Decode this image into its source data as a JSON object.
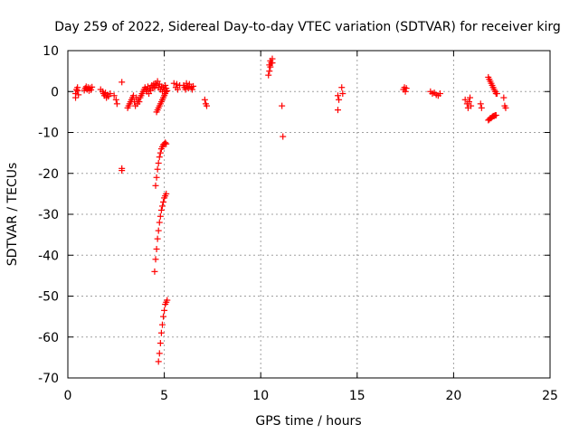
{
  "chart_data": {
    "type": "scatter",
    "title": "Day 259 of 2022, Sidereal Day-to-day VTEC variation (SDTVAR) for receiver kirg",
    "xlabel": "GPS time / hours",
    "ylabel": "SDTVAR / TECUs",
    "xlim": [
      0,
      25
    ],
    "ylim": [
      -70,
      10
    ],
    "xticks": [
      "0",
      "5",
      "10",
      "15",
      "20",
      "25"
    ],
    "yticks": [
      "10",
      "0",
      "-10",
      "-20",
      "-30",
      "-40",
      "-50",
      "-60",
      "-70"
    ],
    "grid": true,
    "marker": "+",
    "series": [
      {
        "name": "SDTVAR",
        "color": "#ff0000",
        "points": [
          [
            0.4,
            -1.5
          ],
          [
            0.4,
            -0.5
          ],
          [
            0.45,
            0.5
          ],
          [
            0.5,
            1.0
          ],
          [
            0.5,
            0.2
          ],
          [
            0.55,
            -0.8
          ],
          [
            0.85,
            0.3
          ],
          [
            0.9,
            0.8
          ],
          [
            0.95,
            1.2
          ],
          [
            1.0,
            0.5
          ],
          [
            1.05,
            1.0
          ],
          [
            1.1,
            0.2
          ],
          [
            1.15,
            0.9
          ],
          [
            1.2,
            0.4
          ],
          [
            1.25,
            1.1
          ],
          [
            1.7,
            0.5
          ],
          [
            1.8,
            0.0
          ],
          [
            1.85,
            -0.5
          ],
          [
            1.9,
            -1.0
          ],
          [
            1.95,
            -0.3
          ],
          [
            2.0,
            -1.5
          ],
          [
            2.05,
            -0.8
          ],
          [
            2.1,
            -1.2
          ],
          [
            2.2,
            -0.5
          ],
          [
            2.4,
            -1.0
          ],
          [
            2.5,
            -2.0
          ],
          [
            2.55,
            -3.0
          ],
          [
            2.8,
            2.3
          ],
          [
            2.8,
            -18.8
          ],
          [
            2.8,
            -19.3
          ],
          [
            3.1,
            -4.0
          ],
          [
            3.15,
            -3.5
          ],
          [
            3.2,
            -3.0
          ],
          [
            3.25,
            -2.5
          ],
          [
            3.3,
            -2.0
          ],
          [
            3.35,
            -1.5
          ],
          [
            3.4,
            -1.0
          ],
          [
            3.45,
            -2.5
          ],
          [
            3.5,
            -3.5
          ],
          [
            3.55,
            -1.5
          ],
          [
            3.6,
            -3.0
          ],
          [
            3.65,
            -2.0
          ],
          [
            3.7,
            -2.5
          ],
          [
            3.75,
            -1.5
          ],
          [
            3.8,
            -1.0
          ],
          [
            3.85,
            -0.5
          ],
          [
            3.9,
            0.0
          ],
          [
            3.95,
            0.5
          ],
          [
            4.0,
            1.0
          ],
          [
            4.05,
            0.5
          ],
          [
            4.1,
            0.0
          ],
          [
            4.15,
            1.2
          ],
          [
            4.2,
            -0.5
          ],
          [
            4.25,
            0.8
          ],
          [
            4.3,
            0.3
          ],
          [
            4.35,
            1.5
          ],
          [
            4.4,
            0.8
          ],
          [
            4.45,
            1.8
          ],
          [
            4.5,
            1.0
          ],
          [
            4.55,
            2.0
          ],
          [
            4.6,
            1.5
          ],
          [
            4.65,
            2.5
          ],
          [
            4.7,
            1.0
          ],
          [
            4.75,
            1.8
          ],
          [
            4.8,
            0.5
          ],
          [
            4.85,
            1.2
          ],
          [
            4.9,
            0.0
          ],
          [
            4.95,
            1.0
          ],
          [
            5.0,
            0.5
          ],
          [
            5.05,
            1.5
          ],
          [
            5.1,
            0.8
          ],
          [
            4.6,
            -5.0
          ],
          [
            4.65,
            -4.5
          ],
          [
            4.7,
            -4.0
          ],
          [
            4.75,
            -3.5
          ],
          [
            4.8,
            -3.0
          ],
          [
            4.85,
            -2.5
          ],
          [
            4.9,
            -2.0
          ],
          [
            4.95,
            -1.5
          ],
          [
            5.0,
            -1.0
          ],
          [
            5.05,
            -0.5
          ],
          [
            5.1,
            0.0
          ],
          [
            5.15,
            0.2
          ],
          [
            4.55,
            -23.0
          ],
          [
            4.6,
            -21.0
          ],
          [
            4.65,
            -19.0
          ],
          [
            4.7,
            -17.5
          ],
          [
            4.75,
            -16.0
          ],
          [
            4.8,
            -15.0
          ],
          [
            4.85,
            -14.0
          ],
          [
            4.9,
            -13.5
          ],
          [
            4.95,
            -13.0
          ],
          [
            5.0,
            -12.8
          ],
          [
            5.05,
            -12.5
          ],
          [
            5.1,
            -12.8
          ],
          [
            4.5,
            -44.0
          ],
          [
            4.55,
            -41.0
          ],
          [
            4.6,
            -38.5
          ],
          [
            4.65,
            -36.0
          ],
          [
            4.7,
            -34.0
          ],
          [
            4.75,
            -32.0
          ],
          [
            4.8,
            -30.5
          ],
          [
            4.85,
            -29.0
          ],
          [
            4.9,
            -28.0
          ],
          [
            4.95,
            -27.0
          ],
          [
            5.0,
            -26.0
          ],
          [
            5.05,
            -25.5
          ],
          [
            5.1,
            -25.0
          ],
          [
            4.7,
            -66.0
          ],
          [
            4.75,
            -64.0
          ],
          [
            4.8,
            -61.5
          ],
          [
            4.85,
            -59.0
          ],
          [
            4.9,
            -57.0
          ],
          [
            4.95,
            -55.0
          ],
          [
            5.0,
            -53.5
          ],
          [
            5.05,
            -52.0
          ],
          [
            5.1,
            -51.5
          ],
          [
            5.15,
            -51.0
          ],
          [
            5.5,
            2.0
          ],
          [
            5.6,
            1.0
          ],
          [
            5.7,
            0.5
          ],
          [
            5.8,
            1.5
          ],
          [
            5.65,
            1.8
          ],
          [
            6.0,
            1.5
          ],
          [
            6.05,
            1.0
          ],
          [
            6.1,
            0.5
          ],
          [
            6.15,
            2.0
          ],
          [
            6.2,
            1.2
          ],
          [
            6.25,
            0.8
          ],
          [
            6.3,
            1.8
          ],
          [
            6.4,
            1.0
          ],
          [
            6.45,
            0.5
          ],
          [
            6.5,
            1.3
          ],
          [
            7.1,
            -2.0
          ],
          [
            7.15,
            -3.0
          ],
          [
            7.2,
            -3.5
          ],
          [
            10.4,
            4.0
          ],
          [
            10.45,
            5.0
          ],
          [
            10.5,
            6.0
          ],
          [
            10.55,
            7.0
          ],
          [
            10.6,
            8.0
          ],
          [
            10.5,
            7.5
          ],
          [
            10.6,
            7.0
          ],
          [
            10.45,
            6.5
          ],
          [
            11.1,
            -3.5
          ],
          [
            11.15,
            -11.0
          ],
          [
            14.0,
            -1.0
          ],
          [
            14.05,
            -2.0
          ],
          [
            14.0,
            -4.5
          ],
          [
            14.2,
            1.0
          ],
          [
            14.25,
            -0.5
          ],
          [
            17.4,
            0.5
          ],
          [
            17.45,
            1.0
          ],
          [
            17.5,
            0.0
          ],
          [
            17.55,
            0.8
          ],
          [
            18.8,
            0.0
          ],
          [
            18.9,
            -0.5
          ],
          [
            19.0,
            -0.3
          ],
          [
            19.1,
            -0.8
          ],
          [
            19.2,
            -1.0
          ],
          [
            19.3,
            -0.5
          ],
          [
            20.6,
            -2.0
          ],
          [
            20.7,
            -3.0
          ],
          [
            20.75,
            -4.0
          ],
          [
            20.8,
            -2.5
          ],
          [
            20.85,
            -1.5
          ],
          [
            20.9,
            -3.5
          ],
          [
            21.4,
            -3.0
          ],
          [
            21.45,
            -4.0
          ],
          [
            21.8,
            3.5
          ],
          [
            21.85,
            3.0
          ],
          [
            21.9,
            2.5
          ],
          [
            21.95,
            2.0
          ],
          [
            22.0,
            1.5
          ],
          [
            22.05,
            1.0
          ],
          [
            22.1,
            0.5
          ],
          [
            22.15,
            0.0
          ],
          [
            22.2,
            -0.5
          ],
          [
            22.25,
            -0.5
          ],
          [
            21.8,
            -7.0
          ],
          [
            21.85,
            -6.8
          ],
          [
            21.9,
            -6.5
          ],
          [
            21.95,
            -6.5
          ],
          [
            22.0,
            -6.2
          ],
          [
            22.05,
            -6.0
          ],
          [
            22.1,
            -6.0
          ],
          [
            22.15,
            -5.8
          ],
          [
            22.2,
            -5.8
          ],
          [
            22.6,
            -1.5
          ],
          [
            22.65,
            -3.5
          ],
          [
            22.7,
            -4.0
          ]
        ]
      }
    ]
  }
}
